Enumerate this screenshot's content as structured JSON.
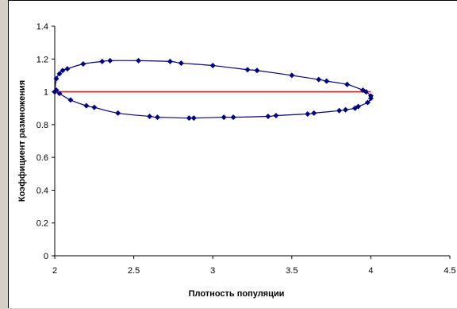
{
  "chart_data": {
    "type": "scatter",
    "xlabel": "Плотность популяции",
    "ylabel": "Коэффициент размножения",
    "xlim": [
      2,
      4.5
    ],
    "ylim": [
      0,
      1.4
    ],
    "x_ticks": [
      "2",
      "2.5",
      "3",
      "3.5",
      "4",
      "4.5"
    ],
    "y_ticks": [
      "0",
      "0.2",
      "0.4",
      "0.6",
      "0.8",
      "1",
      "1.2",
      "1.4"
    ],
    "grid": false,
    "legend": "none",
    "series": [
      {
        "style": "line-with-diamond-markers",
        "color": "#000080",
        "closed": true,
        "points": [
          [
            2.0,
            1.0
          ],
          [
            2.01,
            1.08
          ],
          [
            2.03,
            1.11
          ],
          [
            2.05,
            1.13
          ],
          [
            2.08,
            1.14
          ],
          [
            2.18,
            1.17
          ],
          [
            2.3,
            1.185
          ],
          [
            2.35,
            1.19
          ],
          [
            2.53,
            1.19
          ],
          [
            2.73,
            1.185
          ],
          [
            2.8,
            1.175
          ],
          [
            3.0,
            1.16
          ],
          [
            3.22,
            1.135
          ],
          [
            3.28,
            1.13
          ],
          [
            3.5,
            1.1
          ],
          [
            3.67,
            1.075
          ],
          [
            3.72,
            1.065
          ],
          [
            3.85,
            1.045
          ],
          [
            3.95,
            1.01
          ],
          [
            3.97,
            1.0
          ],
          [
            4.0,
            0.975
          ],
          [
            4.0,
            0.96
          ],
          [
            3.98,
            0.935
          ],
          [
            3.92,
            0.91
          ],
          [
            3.9,
            0.9
          ],
          [
            3.84,
            0.89
          ],
          [
            3.8,
            0.885
          ],
          [
            3.64,
            0.87
          ],
          [
            3.6,
            0.865
          ],
          [
            3.4,
            0.855
          ],
          [
            3.35,
            0.85
          ],
          [
            3.13,
            0.845
          ],
          [
            3.07,
            0.845
          ],
          [
            2.88,
            0.84
          ],
          [
            2.85,
            0.84
          ],
          [
            2.65,
            0.845
          ],
          [
            2.6,
            0.85
          ],
          [
            2.4,
            0.87
          ],
          [
            2.25,
            0.905
          ],
          [
            2.2,
            0.915
          ],
          [
            2.1,
            0.95
          ],
          [
            2.03,
            0.99
          ],
          [
            2.01,
            1.01
          ],
          [
            2.0,
            1.0
          ]
        ]
      },
      {
        "style": "line",
        "color": "#ff0000",
        "closed": false,
        "points": [
          [
            2.0,
            1.0
          ],
          [
            4.0,
            1.0
          ]
        ]
      }
    ]
  }
}
